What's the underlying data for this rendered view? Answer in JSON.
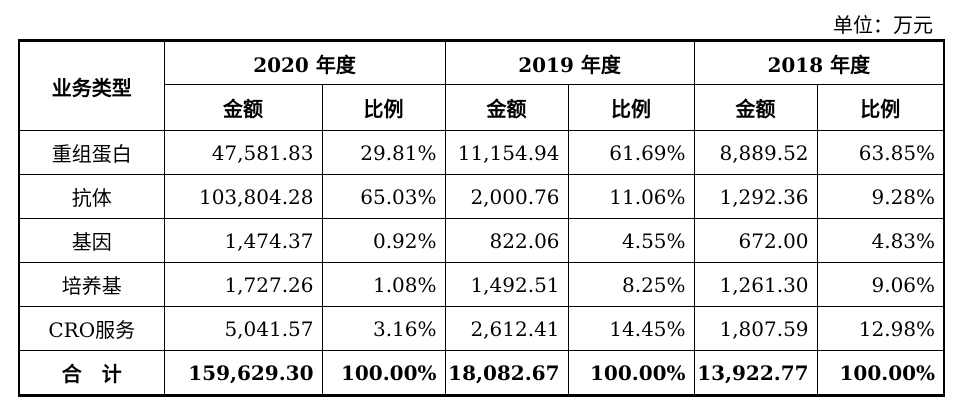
{
  "unit_label": "单位：万元",
  "table": {
    "row_header": "业务类型",
    "years": [
      "2020 年度",
      "2019 年度",
      "2018 年度"
    ],
    "sub_headers": {
      "amount": "金额",
      "ratio": "比例"
    },
    "rows": [
      {
        "name": "重组蛋白",
        "values": [
          "47,581.83",
          "29.81%",
          "11,154.94",
          "61.69%",
          "8,889.52",
          "63.85%"
        ]
      },
      {
        "name": "抗体",
        "values": [
          "103,804.28",
          "65.03%",
          "2,000.76",
          "11.06%",
          "1,292.36",
          "9.28%"
        ]
      },
      {
        "name": "基因",
        "values": [
          "1,474.37",
          "0.92%",
          "822.06",
          "4.55%",
          "672.00",
          "4.83%"
        ]
      },
      {
        "name": "培养基",
        "values": [
          "1,727.26",
          "1.08%",
          "1,492.51",
          "8.25%",
          "1,261.30",
          "9.06%"
        ]
      },
      {
        "name": "CRO服务",
        "values": [
          "5,041.57",
          "3.16%",
          "2,612.41",
          "14.45%",
          "1,807.59",
          "12.98%"
        ]
      }
    ],
    "total": {
      "name": "合　计",
      "values": [
        "159,629.30",
        "100.00%",
        "18,082.67",
        "100.00%",
        "13,922.77",
        "100.00%"
      ]
    }
  }
}
